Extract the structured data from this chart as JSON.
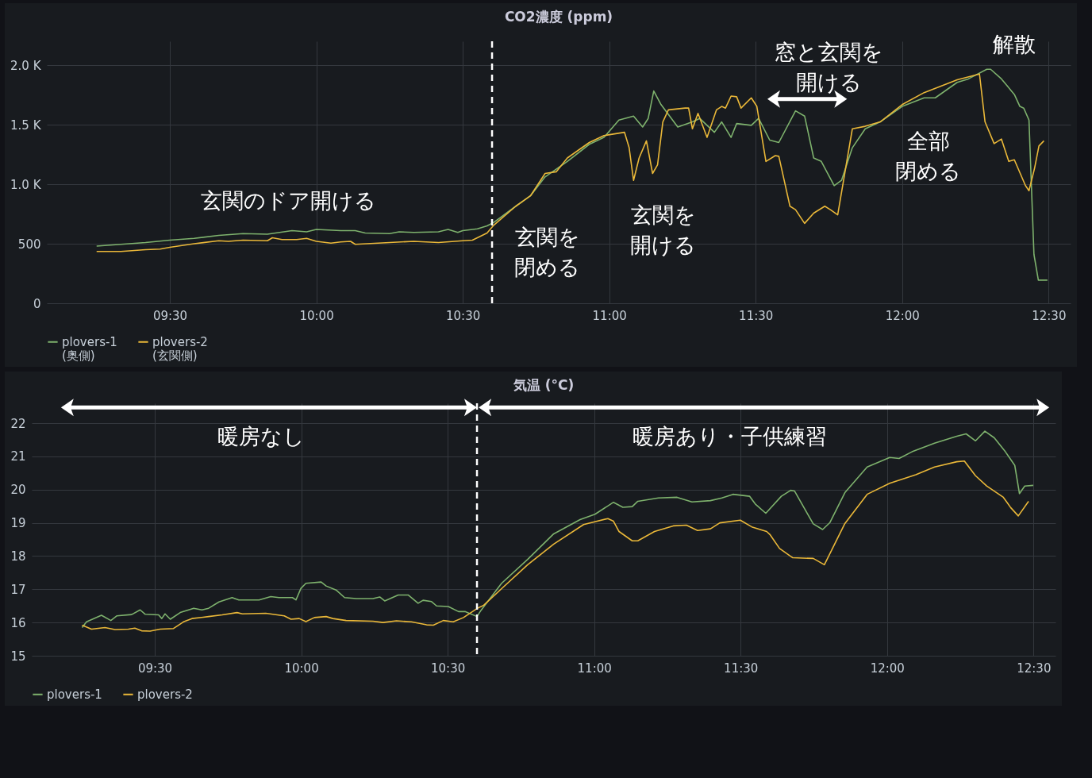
{
  "chart_data": [
    {
      "type": "line",
      "title": "CO2濃度 (ppm)",
      "xlim": [
        9.08,
        12.575
      ],
      "ylim": [
        0,
        2200
      ],
      "xticks": [
        {
          "value": 9.5,
          "label": "09:30"
        },
        {
          "value": 10,
          "label": "10:00"
        },
        {
          "value": 10.5,
          "label": "10:30"
        },
        {
          "value": 11,
          "label": "11:00"
        },
        {
          "value": 11.5,
          "label": "11:30"
        },
        {
          "value": 12,
          "label": "12:00"
        },
        {
          "value": 12.5,
          "label": "12:30"
        }
      ],
      "yticks": [
        0,
        500,
        {
          "value": 1000,
          "label": "1.0 K"
        },
        {
          "value": 1500,
          "label": "1.5 K"
        },
        {
          "value": 2000,
          "label": "2.0 K"
        }
      ],
      "grid": true,
      "legend": "bottom left",
      "series": [
        {
          "name": "plovers-1\n(奥側)",
          "color": "#7eb26d",
          "x": [
            9.25,
            9.333,
            9.417,
            9.5,
            9.583,
            9.667,
            9.75,
            9.833,
            9.917,
            9.967,
            10,
            10.083,
            10.133,
            10.167,
            10.25,
            10.283,
            10.333,
            10.417,
            10.45,
            10.483,
            10.5,
            10.55,
            10.583,
            10.606,
            10.681,
            10.731,
            10.781,
            10.857,
            10.932,
            10.982,
            11.033,
            11.083,
            11.114,
            11.133,
            11.152,
            11.177,
            11.234,
            11.284,
            11.309,
            11.359,
            11.384,
            11.416,
            11.435,
            11.485,
            11.51,
            11.548,
            11.579,
            11.636,
            11.667,
            11.698,
            11.724,
            11.768,
            11.793,
            11.83,
            11.874,
            11.925,
            12,
            12.075,
            12.113,
            12.188,
            12.226,
            12.289,
            12.302,
            12.339,
            12.383,
            12.402,
            12.415,
            12.433,
            12.45,
            12.465,
            12.496
          ],
          "values": [
            480,
            495,
            510,
            530,
            545,
            570,
            585,
            580,
            610,
            600,
            620,
            610,
            610,
            590,
            585,
            600,
            595,
            600,
            620,
            595,
            610,
            625,
            650,
            679,
            815,
            902,
            1061,
            1191,
            1335,
            1393,
            1538,
            1572,
            1480,
            1552,
            1783,
            1668,
            1480,
            1523,
            1552,
            1436,
            1523,
            1393,
            1509,
            1494,
            1552,
            1370,
            1350,
            1616,
            1572,
            1220,
            1191,
            988,
            1032,
            1306,
            1465,
            1523,
            1653,
            1725,
            1725,
            1855,
            1884,
            1965,
            1965,
            1884,
            1754,
            1653,
            1639,
            1538,
            410,
            194,
            194
          ]
        },
        {
          "name": "plovers-2\n(玄関側)",
          "color": "#eab839",
          "x": [
            9.25,
            9.333,
            9.417,
            9.467,
            9.5,
            9.583,
            9.667,
            9.7,
            9.75,
            9.833,
            9.85,
            9.883,
            9.933,
            9.967,
            10,
            10.05,
            10.083,
            10.117,
            10.133,
            10.25,
            10.333,
            10.417,
            10.5,
            10.533,
            10.583,
            10.606,
            10.681,
            10.731,
            10.781,
            10.819,
            10.857,
            10.932,
            10.982,
            11.052,
            11.068,
            11.083,
            11.102,
            11.127,
            11.148,
            11.165,
            11.183,
            11.202,
            11.259,
            11.271,
            11.284,
            11.303,
            11.334,
            11.366,
            11.384,
            11.397,
            11.416,
            11.435,
            11.45,
            11.485,
            11.504,
            11.535,
            11.567,
            11.579,
            11.617,
            11.636,
            11.667,
            11.698,
            11.736,
            11.755,
            11.78,
            11.83,
            11.874,
            11.925,
            12,
            12.075,
            12.188,
            12.264,
            12.283,
            12.314,
            12.339,
            12.364,
            12.383,
            12.421,
            12.433,
            12.452,
            12.467,
            12.484
          ],
          "values": [
            435,
            435,
            450,
            455,
            470,
            500,
            525,
            520,
            530,
            525,
            550,
            535,
            535,
            545,
            520,
            505,
            515,
            520,
            495,
            510,
            520,
            510,
            525,
            530,
            590,
            656,
            815,
            902,
            1090,
            1104,
            1220,
            1350,
            1408,
            1436,
            1306,
            1032,
            1220,
            1364,
            1090,
            1162,
            1523,
            1624,
            1639,
            1639,
            1465,
            1595,
            1393,
            1624,
            1653,
            1639,
            1740,
            1734,
            1639,
            1725,
            1653,
            1191,
            1240,
            1234,
            815,
            786,
            671,
            757,
            815,
            786,
            743,
            1465,
            1486,
            1523,
            1668,
            1769,
            1876,
            1925,
            1523,
            1341,
            1379,
            1191,
            1205,
            988,
            945,
            1133,
            1321,
            1364
          ]
        }
      ],
      "ref_lines": [
        {
          "axis": "x",
          "value": 10.6,
          "color": "#ffffff",
          "line_style": "dashed"
        }
      ],
      "annotations": [
        "玄関のドア開ける",
        "玄関を閉める",
        "玄関を開ける",
        "窓と玄関を開ける",
        "解散",
        "全部閉める"
      ]
    },
    {
      "type": "line",
      "title": "気温 (°C)",
      "xlim": [
        9.08,
        12.575
      ],
      "ylim": [
        15,
        22.6
      ],
      "xticks": [
        {
          "value": 9.5,
          "label": "09:30"
        },
        {
          "value": 10,
          "label": "10:00"
        },
        {
          "value": 10.5,
          "label": "10:30"
        },
        {
          "value": 11,
          "label": "11:00"
        },
        {
          "value": 11.5,
          "label": "11:30"
        },
        {
          "value": 12,
          "label": "12:00"
        },
        {
          "value": 12.5,
          "label": "12:30"
        }
      ],
      "yticks": [
        15,
        16,
        17,
        18,
        19,
        20,
        21,
        22
      ],
      "grid": true,
      "legend": "bottom left",
      "series": [
        {
          "name": "plovers-1",
          "color": "#7eb26d",
          "x": [
            9.252,
            9.267,
            9.318,
            9.35,
            9.37,
            9.421,
            9.45,
            9.467,
            9.513,
            9.524,
            9.535,
            9.553,
            9.587,
            9.633,
            9.661,
            9.684,
            9.719,
            9.764,
            9.787,
            9.856,
            9.896,
            9.924,
            9.97,
            9.982,
            9.999,
            10.016,
            10.068,
            10.085,
            10.119,
            10.148,
            10.188,
            10.245,
            10.268,
            10.285,
            10.331,
            10.365,
            10.399,
            10.416,
            10.445,
            10.462,
            10.502,
            10.537,
            10.559,
            10.6,
            10.614,
            10.684,
            10.773,
            10.862,
            10.952,
            11.003,
            11.066,
            11.098,
            11.13,
            11.149,
            11.219,
            11.283,
            11.334,
            11.397,
            11.436,
            11.474,
            11.531,
            11.55,
            11.586,
            11.639,
            11.671,
            11.684,
            11.748,
            11.78,
            11.805,
            11.856,
            11.932,
            12.009,
            12.041,
            12.085,
            12.162,
            12.238,
            12.27,
            12.302,
            12.334,
            12.366,
            12.404,
            12.436,
            12.452,
            12.47,
            12.499
          ],
          "values": [
            15.85,
            16.02,
            16.22,
            16.06,
            16.2,
            16.24,
            16.38,
            16.25,
            16.23,
            16.12,
            16.26,
            16.1,
            16.3,
            16.43,
            16.38,
            16.43,
            16.62,
            16.75,
            16.68,
            16.68,
            16.78,
            16.75,
            16.75,
            16.68,
            17.03,
            17.18,
            17.22,
            17.1,
            16.98,
            16.75,
            16.72,
            16.72,
            16.77,
            16.65,
            16.83,
            16.83,
            16.58,
            16.67,
            16.63,
            16.5,
            16.48,
            16.33,
            16.33,
            16.18,
            16.37,
            17.18,
            17.9,
            18.67,
            19.1,
            19.26,
            19.62,
            19.47,
            19.49,
            19.65,
            19.75,
            19.77,
            19.63,
            19.67,
            19.75,
            19.86,
            19.8,
            19.57,
            19.29,
            19.8,
            19.98,
            19.96,
            18.97,
            18.8,
            19.01,
            19.91,
            20.68,
            20.97,
            20.94,
            21.14,
            21.4,
            21.61,
            21.68,
            21.47,
            21.76,
            21.56,
            21.14,
            20.73,
            19.88,
            20.11,
            20.13
          ]
        },
        {
          "name": "plovers-2",
          "color": "#eab839",
          "x": [
            9.252,
            9.284,
            9.33,
            9.364,
            9.41,
            9.432,
            9.455,
            9.484,
            9.518,
            9.564,
            9.598,
            9.627,
            9.684,
            9.73,
            9.781,
            9.799,
            9.879,
            9.942,
            9.965,
            9.993,
            10.016,
            10.045,
            10.085,
            10.108,
            10.153,
            10.245,
            10.279,
            10.325,
            10.376,
            10.428,
            10.451,
            10.485,
            10.519,
            10.554,
            10.6,
            10.623,
            10.684,
            10.773,
            10.862,
            10.964,
            11.047,
            11.066,
            11.085,
            11.13,
            11.149,
            11.206,
            11.27,
            11.315,
            11.353,
            11.397,
            11.429,
            11.499,
            11.538,
            11.589,
            11.601,
            11.633,
            11.678,
            11.748,
            11.786,
            11.856,
            11.932,
            12.009,
            12.098,
            12.162,
            12.238,
            12.264,
            12.302,
            12.34,
            12.397,
            12.422,
            12.448,
            12.483
          ],
          "values": [
            15.92,
            15.8,
            15.85,
            15.79,
            15.8,
            15.83,
            15.75,
            15.74,
            15.8,
            15.82,
            16.02,
            16.12,
            16.18,
            16.23,
            16.3,
            16.26,
            16.28,
            16.2,
            16.1,
            16.12,
            16.03,
            16.15,
            16.18,
            16.12,
            16.06,
            16.04,
            16.0,
            16.05,
            16.02,
            15.93,
            15.92,
            16.06,
            16.02,
            16.15,
            16.42,
            16.52,
            17.02,
            17.74,
            18.36,
            18.95,
            19.13,
            19.05,
            18.74,
            18.46,
            18.46,
            18.74,
            18.91,
            18.93,
            18.77,
            18.82,
            19.0,
            19.08,
            18.88,
            18.74,
            18.64,
            18.23,
            17.95,
            17.93,
            17.74,
            18.98,
            19.86,
            20.19,
            20.45,
            20.68,
            20.84,
            20.86,
            20.42,
            20.11,
            19.77,
            19.46,
            19.21,
            19.65
          ]
        }
      ],
      "ref_lines": [
        {
          "axis": "x",
          "value": 10.6,
          "color": "#ffffff",
          "line_style": "dashed"
        }
      ],
      "annotations": [
        "暖房なし",
        "暖房あり・子供練習"
      ]
    }
  ]
}
